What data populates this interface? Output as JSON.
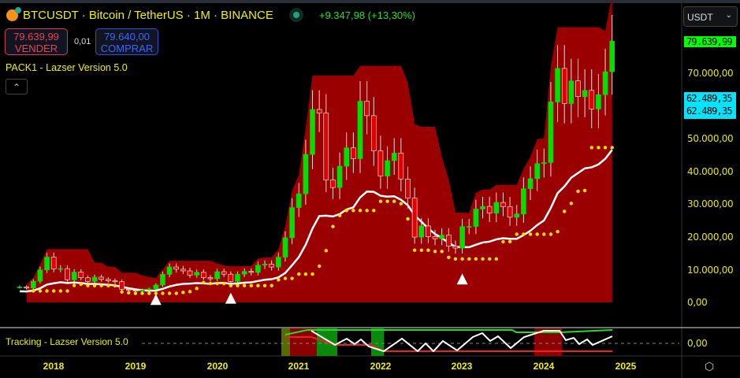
{
  "header": {
    "symbol_title": "BTCUSDT · Bitcoin / TetherUS · 1M · BINANCE",
    "change": "+9.347,98 (+13,30%)"
  },
  "trade": {
    "sell_price": "79.639,99",
    "sell_label": "VENDER",
    "spread": "0,01",
    "buy_price": "79.640,00",
    "buy_label": "COMPRAR"
  },
  "indicators": {
    "main": "PACK1 - Lazser Version 5.0",
    "collapse_icon": "chevron-up",
    "oscillator": "Tracking - Lazser Version 5.0"
  },
  "currency_select": {
    "value": "USDT"
  },
  "price_axis": {
    "labels": [
      "70.000,00",
      "50.000,00",
      "40.000,00",
      "30.000,00",
      "20.000,00",
      "10.000,00",
      "0,00"
    ],
    "last_price": "79.639,99",
    "indicator_value_1": "62.489,35",
    "indicator_value_2": "62.489,35",
    "oscillator_zero": "0,00"
  },
  "time_axis": {
    "labels": [
      "2018",
      "2019",
      "2020",
      "2021",
      "2022",
      "2023",
      "2024",
      "2025"
    ]
  },
  "colors": {
    "up": "#00e000",
    "down": "#e00000",
    "cloud": "#9b0000",
    "trend_line": "#1a1aff",
    "base_line": "#ffffff",
    "dots": "#ffe000",
    "last_price_bg": "#00ff00",
    "indicator_bg": "#00e5ff"
  },
  "chart_data": {
    "type": "candlestick",
    "interval": "1M",
    "x_start": "2017-08",
    "ylim": [
      0,
      90000
    ],
    "yticks": [
      0,
      10000,
      20000,
      30000,
      40000,
      50000,
      70000
    ],
    "open_first": 4700,
    "close": [
      4700,
      4350,
      6450,
      9900,
      13800,
      10200,
      10300,
      6900,
      9200,
      7500,
      6400,
      7700,
      7000,
      6600,
      6300,
      4000,
      3700,
      3450,
      3800,
      4100,
      5300,
      8550,
      10800,
      10100,
      9600,
      8300,
      9150,
      7550,
      7200,
      9350,
      8600,
      6400,
      8600,
      9450,
      9140,
      11350,
      11650,
      10780,
      13800,
      19700,
      28900,
      33100,
      45100,
      58800,
      57700,
      37300,
      35000,
      41500,
      47100,
      43800,
      61300,
      56900,
      46200,
      38500,
      43200,
      45500,
      37600,
      31800,
      19900,
      23300,
      20050,
      19400,
      20500,
      17150,
      16550,
      23100,
      23150,
      28450,
      29250,
      27200,
      30450,
      29200,
      25950,
      26950,
      34650,
      37700,
      42300,
      42600,
      61100,
      71300,
      60600,
      67500,
      62700,
      64600,
      58950,
      63300,
      70300,
      79640
    ],
    "signals": [
      {
        "type": "buy-triangle",
        "date": "2019-04"
      },
      {
        "type": "buy-triangle",
        "date": "2020-03"
      },
      {
        "type": "buy-triangle",
        "date": "2023-01"
      }
    ]
  }
}
